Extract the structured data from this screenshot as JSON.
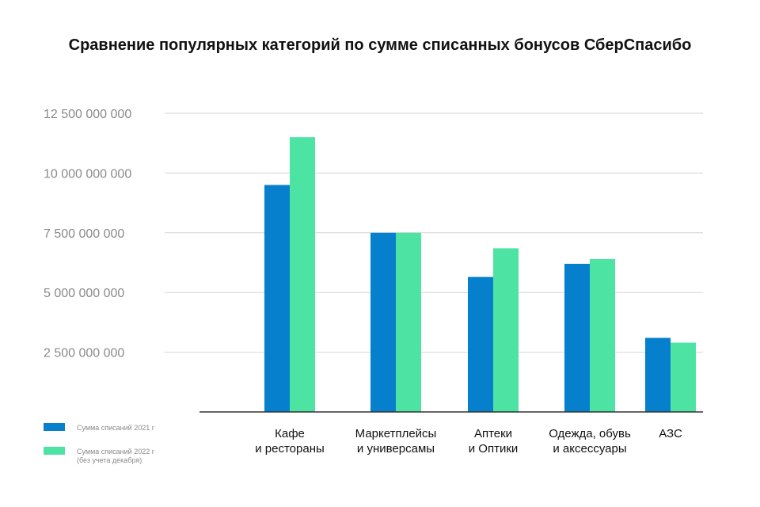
{
  "chart_data": {
    "type": "bar",
    "title": "Сравнение популярных категорий по сумме списанных бонусов СберСпасибо",
    "xlabel": "",
    "ylabel": "",
    "ylim": [
      0,
      12500000000
    ],
    "yticks": [
      2500000000,
      5000000000,
      7500000000,
      10000000000,
      12500000000
    ],
    "ytick_labels": [
      "2 500 000 000",
      "5 000 000 000",
      "7 500 000 000",
      "10 000 000 000",
      "12 500 000 000"
    ],
    "grid": true,
    "legend_position": "bottom-left",
    "categories": [
      [
        "Кафе",
        "и рестораны"
      ],
      [
        "Маркетплейсы",
        "и универсамы"
      ],
      [
        "Аптеки",
        "и Оптики"
      ],
      [
        "Одежда, обувь",
        "и аксессуары"
      ],
      [
        "АЗС"
      ]
    ],
    "series": [
      {
        "name": "Сумма списаний 2021 г",
        "color": "#0680cc",
        "values": [
          9500000000,
          7500000000,
          5650000000,
          6200000000,
          3100000000
        ]
      },
      {
        "name": [
          "Сумма списаний 2022 г",
          "(без учета декабря)"
        ],
        "color": "#4de3a3",
        "values": [
          11500000000,
          7500000000,
          6850000000,
          6400000000,
          2900000000
        ]
      }
    ]
  }
}
